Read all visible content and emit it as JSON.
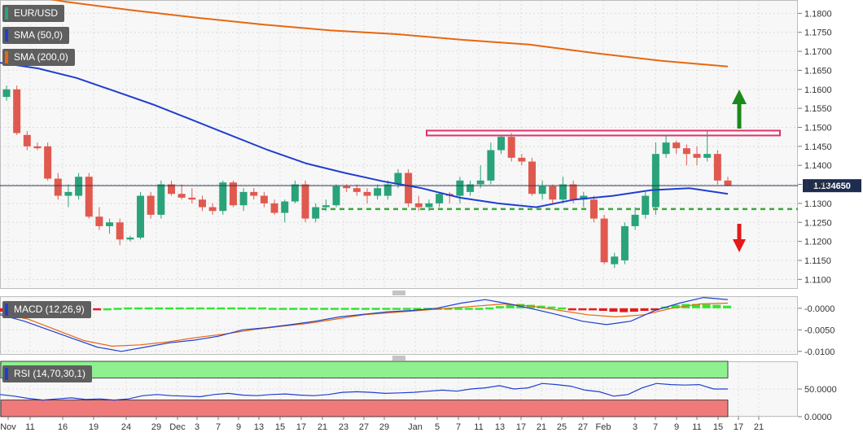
{
  "colors": {
    "sma50": "#1f3fd0",
    "sma200": "#e8670f",
    "bull": "#2aa37a",
    "bear": "#e0594f",
    "resistance": "#e0336e",
    "support": "#3aa83a",
    "up_arrow": "#1a8a1a",
    "down_arrow": "#e31a1a",
    "macd_pos": "#33e633",
    "macd_neg": "#e61a1a",
    "rsi_ob": "#8ef08e",
    "rsi_os": "#f07a7a"
  },
  "legend": {
    "symbol": "EUR/USD",
    "sma50": "SMA (50,0)",
    "sma200": "SMA (200,0)",
    "macd": "MACD (12,26,9)",
    "rsi": "RSI (14,70,30,1)"
  },
  "chart_data": [
    {
      "type": "candlestick",
      "y_ticks": [
        "1.1800",
        "1.1750",
        "1.1700",
        "1.1650",
        "1.1600",
        "1.1550",
        "1.1500",
        "1.1450",
        "1.1400",
        "1.1350",
        "1.1300",
        "1.1250",
        "1.1200",
        "1.1150",
        "1.1100"
      ],
      "ylim": [
        1.1075,
        1.1835
      ],
      "last_price": 1.13465,
      "last_price_label": "1.134650",
      "x_ticks": [
        "Nov",
        "11",
        "16",
        "19",
        "24",
        "29",
        "Dec",
        "3",
        "7",
        "9",
        "13",
        "15",
        "17",
        "21",
        "23",
        "27",
        "29",
        "Jan",
        "5",
        "7",
        "11",
        "13",
        "17",
        "21",
        "25",
        "27",
        "Feb",
        "3",
        "7",
        "9",
        "11",
        "15",
        "17",
        "21"
      ],
      "candles": [
        [
          1.158,
          1.161,
          1.157,
          1.16
        ],
        [
          1.16,
          1.161,
          1.148,
          1.1485
        ],
        [
          1.148,
          1.149,
          1.144,
          1.145
        ],
        [
          1.145,
          1.146,
          1.144,
          1.1445
        ],
        [
          1.145,
          1.146,
          1.136,
          1.1365
        ],
        [
          1.1365,
          1.138,
          1.131,
          1.132
        ],
        [
          1.132,
          1.135,
          1.129,
          1.133
        ],
        [
          1.132,
          1.138,
          1.131,
          1.137
        ],
        [
          1.137,
          1.138,
          1.126,
          1.1265
        ],
        [
          1.1265,
          1.129,
          1.123,
          1.124
        ],
        [
          1.124,
          1.126,
          1.122,
          1.125
        ],
        [
          1.125,
          1.126,
          1.119,
          1.1205
        ],
        [
          1.1205,
          1.1215,
          1.12,
          1.121
        ],
        [
          1.121,
          1.133,
          1.1205,
          1.132
        ],
        [
          1.132,
          1.133,
          1.126,
          1.127
        ],
        [
          1.127,
          1.136,
          1.126,
          1.135
        ],
        [
          1.135,
          1.136,
          1.132,
          1.1325
        ],
        [
          1.1325,
          1.135,
          1.131,
          1.1315
        ],
        [
          1.1315,
          1.134,
          1.13,
          1.131
        ],
        [
          1.131,
          1.132,
          1.128,
          1.129
        ],
        [
          1.129,
          1.13,
          1.127,
          1.128
        ],
        [
          1.128,
          1.136,
          1.127,
          1.1355
        ],
        [
          1.1355,
          1.136,
          1.129,
          1.1295
        ],
        [
          1.1295,
          1.134,
          1.128,
          1.133
        ],
        [
          1.133,
          1.134,
          1.131,
          1.132
        ],
        [
          1.132,
          1.133,
          1.129,
          1.13
        ],
        [
          1.13,
          1.131,
          1.127,
          1.1275
        ],
        [
          1.1275,
          1.131,
          1.125,
          1.1305
        ],
        [
          1.1305,
          1.136,
          1.13,
          1.135
        ],
        [
          1.135,
          1.136,
          1.125,
          1.126
        ],
        [
          1.126,
          1.13,
          1.125,
          1.129
        ],
        [
          1.129,
          1.131,
          1.128,
          1.1295
        ],
        [
          1.1295,
          1.135,
          1.129,
          1.1345
        ],
        [
          1.1345,
          1.135,
          1.133,
          1.134
        ],
        [
          1.134,
          1.135,
          1.132,
          1.133
        ],
        [
          1.133,
          1.134,
          1.13,
          1.132
        ],
        [
          1.132,
          1.135,
          1.131,
          1.134
        ],
        [
          1.132,
          1.136,
          1.131,
          1.135
        ],
        [
          1.135,
          1.139,
          1.134,
          1.138
        ],
        [
          1.138,
          1.139,
          1.129,
          1.13
        ],
        [
          1.13,
          1.132,
          1.128,
          1.129
        ],
        [
          1.129,
          1.131,
          1.128,
          1.13
        ],
        [
          1.13,
          1.133,
          1.129,
          1.1325
        ],
        [
          1.1325,
          1.133,
          1.13,
          1.132
        ],
        [
          1.132,
          1.137,
          1.13,
          1.136
        ],
        [
          1.133,
          1.136,
          1.132,
          1.135
        ],
        [
          1.135,
          1.14,
          1.134,
          1.136
        ],
        [
          1.136,
          1.146,
          1.135,
          1.144
        ],
        [
          1.144,
          1.148,
          1.143,
          1.1475
        ],
        [
          1.1475,
          1.1485,
          1.141,
          1.142
        ],
        [
          1.142,
          1.143,
          1.14,
          1.141
        ],
        [
          1.141,
          1.142,
          1.132,
          1.1325
        ],
        [
          1.1325,
          1.136,
          1.131,
          1.1345
        ],
        [
          1.1345,
          1.135,
          1.13,
          1.131
        ],
        [
          1.131,
          1.137,
          1.13,
          1.135
        ],
        [
          1.135,
          1.136,
          1.13,
          1.131
        ],
        [
          1.131,
          1.133,
          1.129,
          1.132
        ],
        [
          1.131,
          1.132,
          1.125,
          1.126
        ],
        [
          1.126,
          1.127,
          1.114,
          1.1145
        ],
        [
          1.114,
          1.117,
          1.113,
          1.116
        ],
        [
          1.115,
          1.125,
          1.114,
          1.124
        ],
        [
          1.124,
          1.129,
          1.123,
          1.127
        ],
        [
          1.127,
          1.133,
          1.126,
          1.132
        ],
        [
          1.129,
          1.146,
          1.127,
          1.143
        ],
        [
          1.143,
          1.148,
          1.142,
          1.146
        ],
        [
          1.146,
          1.1465,
          1.143,
          1.1445
        ],
        [
          1.1445,
          1.1455,
          1.14,
          1.143
        ],
        [
          1.143,
          1.145,
          1.14,
          1.142
        ],
        [
          1.142,
          1.149,
          1.141,
          1.143
        ],
        [
          1.143,
          1.144,
          1.135,
          1.136
        ],
        [
          1.136,
          1.137,
          1.1345,
          1.13465
        ]
      ],
      "sma50": [
        1.167,
        1.1655,
        1.163,
        1.1595,
        1.156,
        1.152,
        1.148,
        1.144,
        1.1405,
        1.138,
        1.1358,
        1.134,
        1.1315,
        1.13,
        1.129,
        1.131,
        1.132,
        1.1335,
        1.134,
        1.1325
      ],
      "sma200": [
        1.186,
        1.183,
        1.1808,
        1.1788,
        1.177,
        1.1755,
        1.1745,
        1.173,
        1.1718,
        1.1695,
        1.1675,
        1.166
      ],
      "resistance_level": 1.1485,
      "support_level": 1.1285
    },
    {
      "type": "macd",
      "y_ticks": [
        "-0.0000",
        "-0.0050",
        "-0.0100"
      ],
      "ylim": [
        -0.0108,
        0.0028
      ],
      "histogram": [
        -0.0008,
        -0.001,
        -0.0012,
        -0.0014,
        -0.0014,
        -0.0013,
        -0.0011,
        -0.0009,
        -0.0006,
        -0.0003,
        0.0,
        0.0001,
        0.0002,
        0.0002,
        0.0002,
        0.0002,
        0.0002,
        0.0002,
        0.0002,
        0.0002,
        0.0002,
        0.0002,
        0.0002,
        0.0002,
        0.0002,
        0.0002,
        0.0001,
        0.0001,
        0.0001,
        0.0001,
        0.0001,
        0.0001,
        0.0001,
        0.0001,
        0.0001,
        0.0001,
        0.0001,
        0.0001,
        0.0001,
        0.0001,
        0.0001,
        0.0001,
        0.0001,
        0.0001,
        0.0001,
        0.0001,
        0.0001,
        0.0002,
        0.0005,
        0.0008,
        0.001,
        0.0008,
        0.0006,
        0.0004,
        0.0002,
        -0.0001,
        -0.0002,
        -0.0004,
        -0.0006,
        -0.0008,
        -0.0009,
        -0.0008,
        -0.0006,
        -0.0002,
        0.0004,
        0.0008,
        0.001,
        0.001,
        0.0009,
        0.0008,
        0.0006
      ],
      "macd": [
        -0.0015,
        -0.003,
        -0.005,
        -0.007,
        -0.009,
        -0.01,
        -0.009,
        -0.008,
        -0.0074,
        -0.0065,
        -0.005,
        -0.0045,
        -0.0038,
        -0.003,
        -0.002,
        -0.0014,
        -0.0008,
        -0.0005,
        0.0,
        0.0012,
        0.002,
        0.001,
        -0.0002,
        -0.0015,
        -0.003,
        -0.0038,
        -0.003,
        -0.0005,
        0.0012,
        0.0025,
        0.002
      ],
      "signal": [
        -0.0012,
        -0.0025,
        -0.005,
        -0.0075,
        -0.0088,
        -0.0085,
        -0.0078,
        -0.0068,
        -0.006,
        -0.005,
        -0.0042,
        -0.0035,
        -0.0025,
        -0.0015,
        -0.001,
        -0.0005,
        0.0,
        0.0005,
        0.001,
        0.0005,
        -0.0005,
        -0.0015,
        -0.002,
        -0.0015,
        0.0,
        0.001,
        0.0012
      ]
    },
    {
      "type": "rsi",
      "y_ticks": [
        "50.0000",
        "0.0000"
      ],
      "ylim": [
        0,
        100
      ],
      "overbought": 70,
      "oversold": 30,
      "values": [
        40,
        37,
        33,
        30,
        32,
        34,
        31,
        32,
        30,
        32,
        38,
        40,
        38,
        37,
        36,
        40,
        42,
        39,
        38,
        40,
        41,
        39,
        38,
        40,
        44,
        45,
        44,
        42,
        43,
        44,
        46,
        48,
        46,
        50,
        52,
        56,
        50,
        52,
        60,
        58,
        55,
        48,
        45,
        37,
        40,
        52,
        60,
        58,
        57,
        58,
        50,
        50
      ]
    }
  ]
}
